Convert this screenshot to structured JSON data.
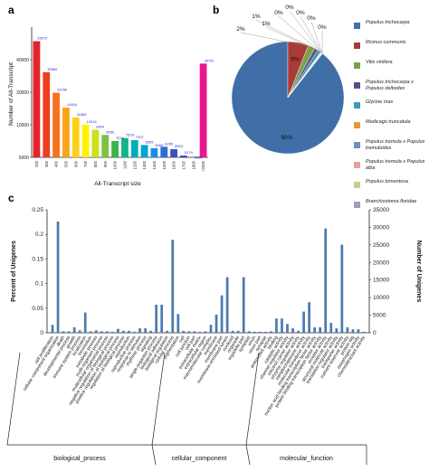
{
  "panel_letters": {
    "a": "a",
    "b": "b",
    "c": "c"
  },
  "chart_data": [
    {
      "id": "a",
      "type": "bar",
      "xlabel": "All-Transcript size",
      "ylabel": "Number of All-Transcript",
      "categories": [
        "200",
        "300",
        "400",
        "500",
        "600",
        "700",
        "800",
        "900",
        "1000",
        "1100",
        "1200",
        "1300",
        "1400",
        "1500",
        "1600",
        "1700",
        "1800",
        ">2000"
      ],
      "values": [
        59272,
        30660,
        19780,
        14404,
        11666,
        10016,
        8994,
        8050,
        7074,
        7528,
        7207,
        6505,
        6069,
        6265,
        5953,
        5179,
        4684,
        36790
      ],
      "value_labels": [
        "59272",
        "30660",
        "19780",
        "14404",
        "11666",
        "10016",
        "8994",
        "8050",
        "7074",
        "7528",
        "7207",
        "6505",
        "6069",
        "6265",
        "5953",
        "5179",
        "4684",
        "36790"
      ],
      "yticks": [
        "5000",
        "10000",
        "20000",
        "40000"
      ],
      "colors": [
        "#e4232a",
        "#ee3f1f",
        "#f7711e",
        "#faa41a",
        "#fcd116",
        "#fff200",
        "#c9e21a",
        "#7dc242",
        "#39b54a",
        "#12b486",
        "#00aeb8",
        "#00a5d8",
        "#1c8ee0",
        "#2c6fd4",
        "#3b4fc7",
        "#4b2fae",
        "#7b2aa0",
        "#e8178d"
      ]
    },
    {
      "id": "b",
      "type": "pie",
      "labels": [
        "Populus trichocarpa",
        "Ricinus communis",
        "Vitis vinifera",
        "Populus trichocarpa x Populus deltoides",
        "Glycine max",
        "Medicago truncatula",
        "Populus tremula x Populus tremuloides",
        "Populus tremula x Populus alba",
        "Populus tomentosa",
        "Branchiostoma floridae"
      ],
      "values": [
        90,
        6,
        2,
        1,
        1,
        0,
        0,
        0,
        0,
        0
      ],
      "value_labels": [
        "90%",
        "6%",
        "2%",
        "1%",
        "1%",
        "0%",
        "0%",
        "0%",
        "0%",
        "0%"
      ],
      "colors": [
        "#3f6fa6",
        "#a83a37",
        "#7aa04a",
        "#5f4a87",
        "#3a9ab8",
        "#e29a3a",
        "#6f91c6",
        "#e3a0a0",
        "#bcd38f",
        "#a897c3"
      ]
    },
    {
      "id": "c",
      "type": "bar",
      "ylabel": "Percent of Unigenes",
      "ylabel_right": "Number of Unigenes",
      "ylim": [
        0,
        0.25
      ],
      "yticks_left": [
        "0",
        "0.05",
        "0.1",
        "0.15",
        "0.2",
        "0.25"
      ],
      "yticks_right": [
        "0",
        "5000",
        "10000",
        "15000",
        "20000",
        "25000",
        "30000",
        "35000"
      ],
      "groups": [
        {
          "label": "biological_process",
          "terms": [
            "cell proliferation",
            "cellular component organization",
            "death",
            "developmental process",
            "growth",
            "immune system process",
            "localization",
            "locomotion",
            "metabolic process",
            "multi-organism process",
            "multicellular organismal process",
            "negative regulation of biological process",
            "positive regulation of biological process",
            "regulation of biological process",
            "reproduction",
            "reproductive process",
            "response to stimulus",
            "rhythmic process",
            "signaling",
            "single-organism process",
            "biological adhesion",
            "biological regulation",
            "cellular process",
            "pigmentation"
          ]
        },
        {
          "label": "cellular_component",
          "terms": [
            "cell",
            "cell junction",
            "cell part",
            "extracellular matrix",
            "extracellular region",
            "macromolecular complex",
            "membrane",
            "membrane part",
            "membrane-enclosed lumen",
            "nucleoid",
            "organelle",
            "organelle part",
            "symplast",
            "virion",
            "virion part",
            "synapse"
          ]
        },
        {
          "label": "molecular_function",
          "terms": [
            "antioxidant activity",
            "binding",
            "catalytic activity",
            "channel regulator activity",
            "electron carrier activity",
            "enzyme regulator activity",
            "metallochaperone activity",
            "molecular transducer activity",
            "nucleic acid binding transcription factor activity",
            "protein binding transcription factor activity",
            "receptor activity",
            "structural molecule activity",
            "translation regulator activity",
            "transporter activity",
            "nutrient reservoir activity",
            "protein tag",
            "morphogen activity",
            "chemoattractant activity"
          ]
        }
      ],
      "values": [
        0.016,
        0.226,
        0.003,
        0.003,
        0.011,
        0.005,
        0.041,
        0.003,
        0.005,
        0.003,
        0.003,
        0.002,
        0.008,
        0.004,
        0.004,
        0.002,
        0.009,
        0.009,
        0.004,
        0.057,
        0.057,
        0.004,
        0.189,
        0.038,
        0.004,
        0.003,
        0.003,
        0.002,
        0.003,
        0.016,
        0.037,
        0.076,
        0.113,
        0.004,
        0.004,
        0.113,
        0.003,
        0.002,
        0.002,
        0.002,
        0.003,
        0.029,
        0.029,
        0.018,
        0.009,
        0.004,
        0.043,
        0.062,
        0.011,
        0.011,
        0.212,
        0.02,
        0.009,
        0.179,
        0.011,
        0.007,
        0.007,
        0.002
      ]
    }
  ]
}
